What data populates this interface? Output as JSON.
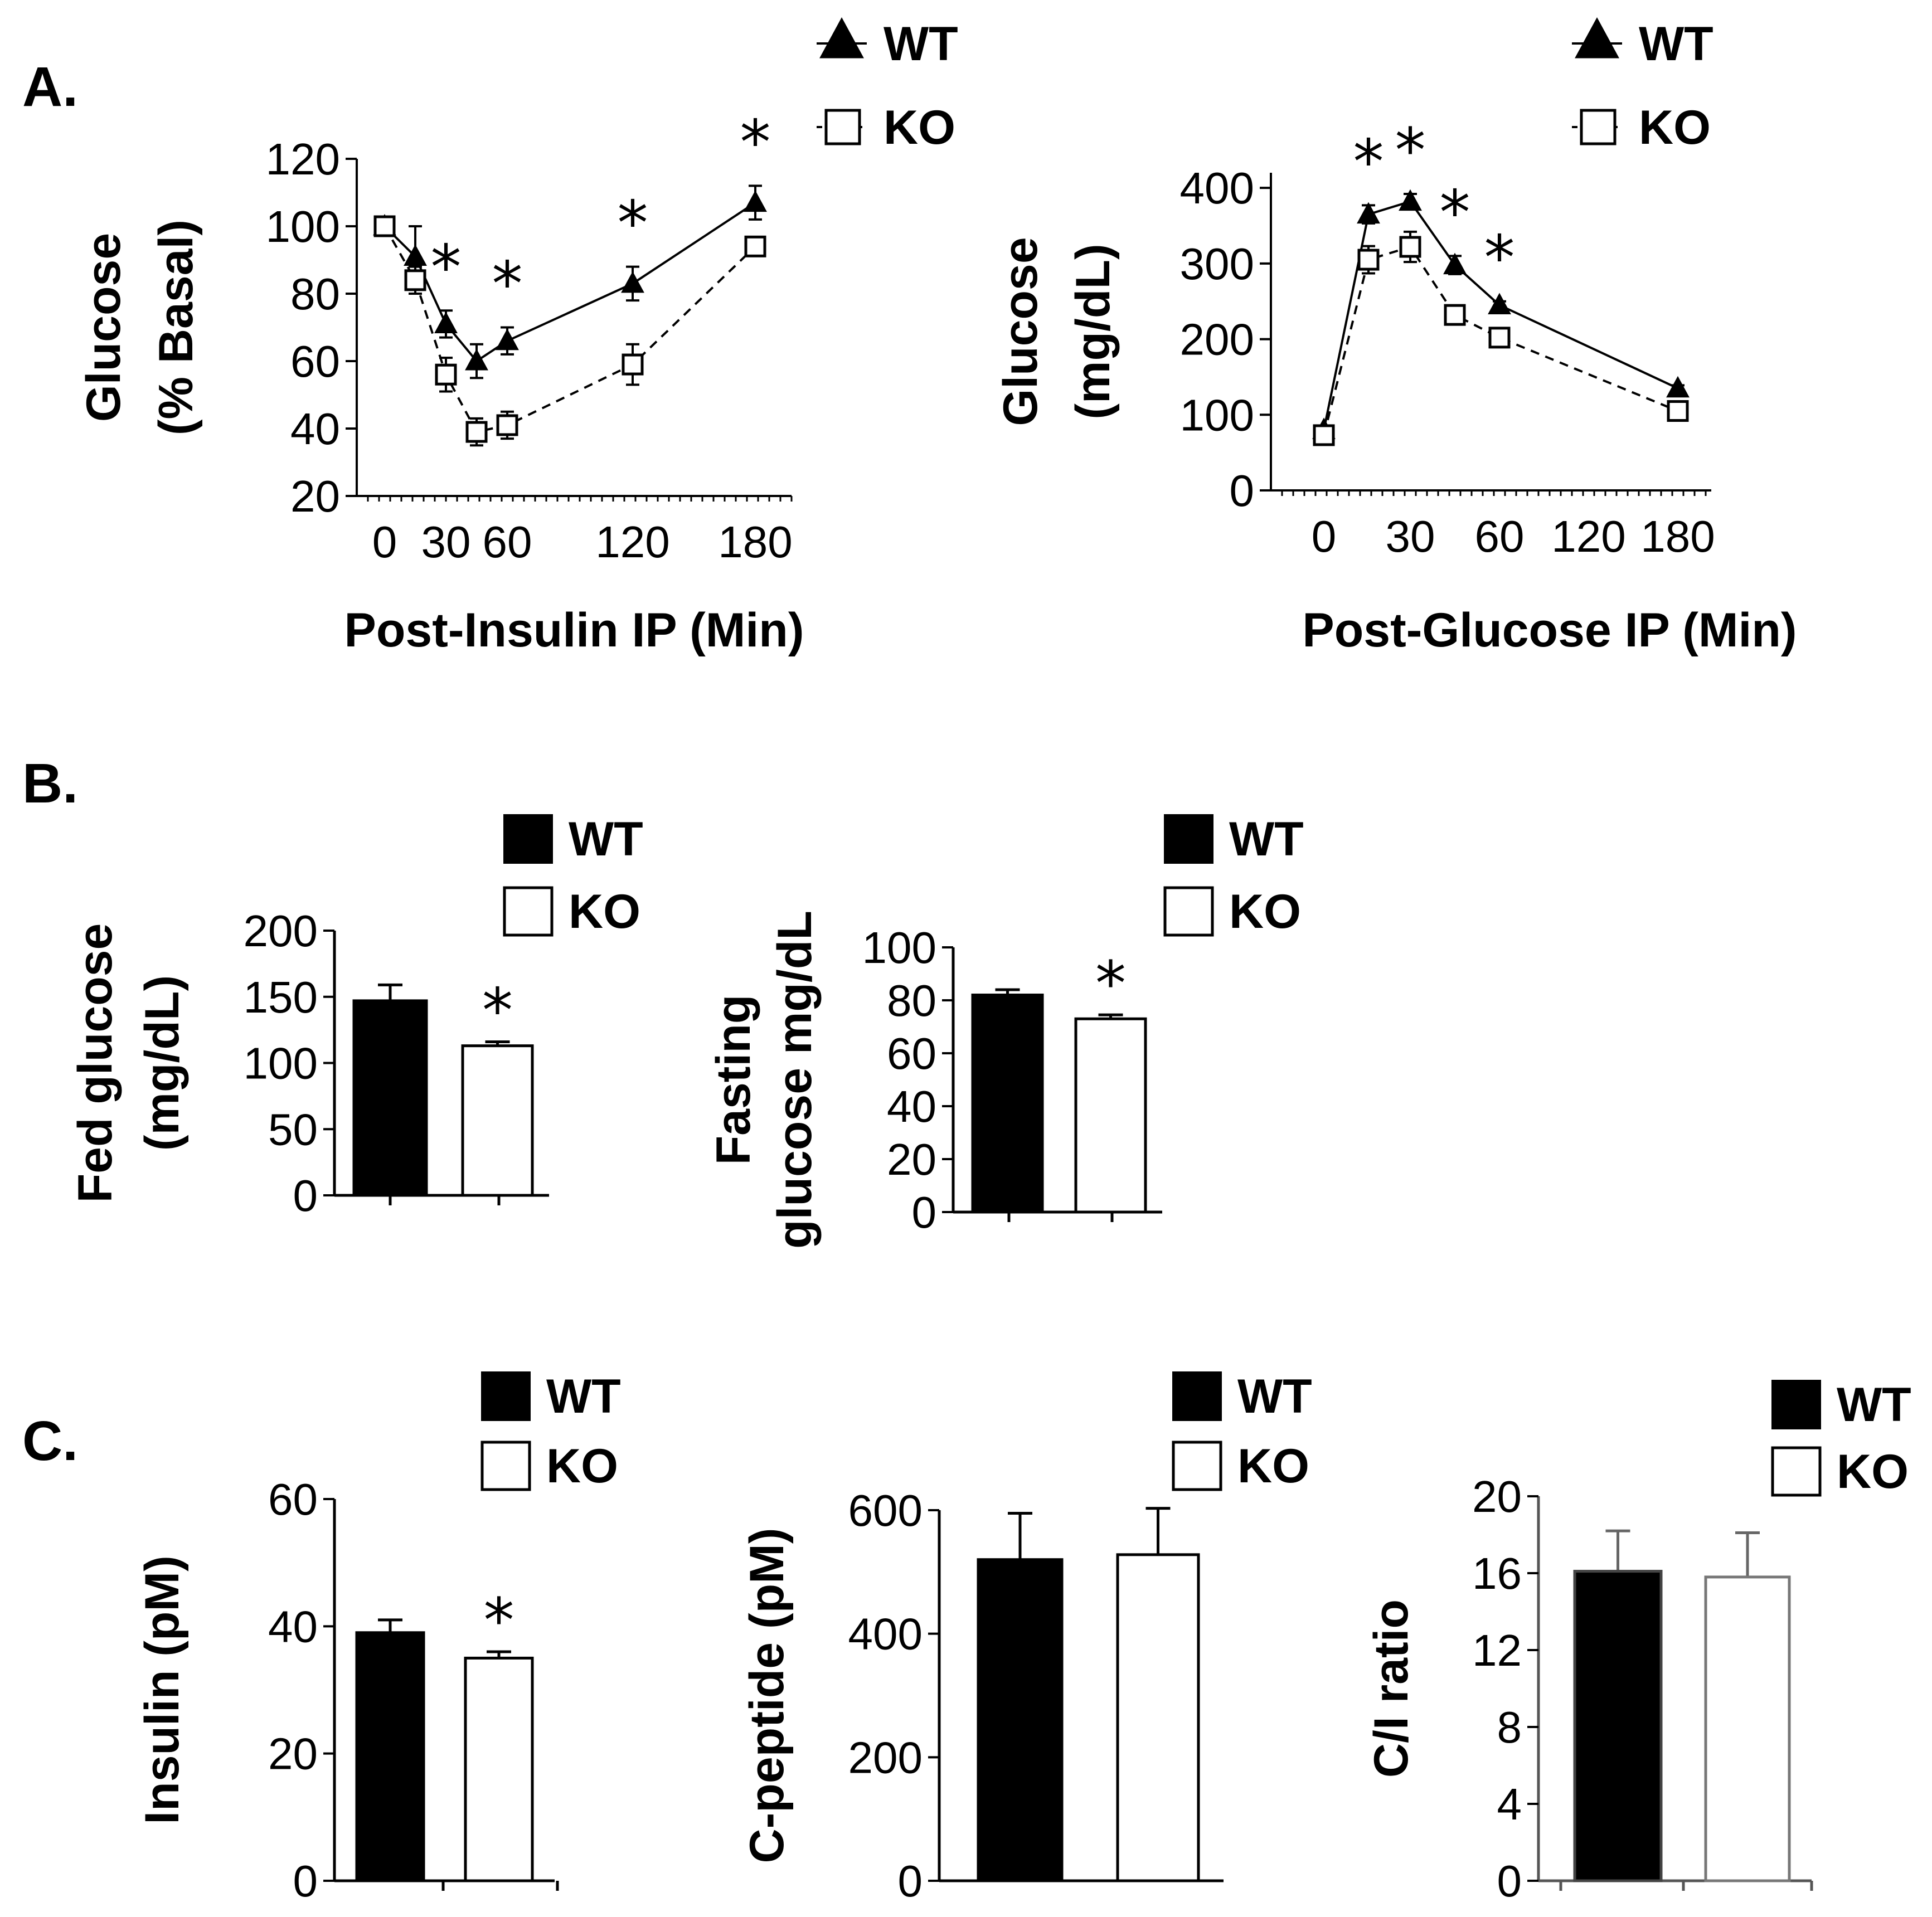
{
  "panel_labels": {
    "a": "A.",
    "b": "B.",
    "c": "C."
  },
  "chart_data": [
    {
      "id": "itt",
      "type": "line",
      "x": [
        0,
        15,
        30,
        45,
        60,
        120,
        180
      ],
      "xticks": [
        "0",
        "30",
        "60",
        "120",
        "180"
      ],
      "xtick_values": [
        0,
        30,
        60,
        120,
        180
      ],
      "xlabel": "Post-Insulin IP (Min)",
      "ylabel_lines": [
        "Glucose",
        "(% Basal)"
      ],
      "ylim": [
        20,
        120
      ],
      "yticks": [
        "120",
        "100",
        "80",
        "60",
        "40",
        "20"
      ],
      "ytick_values": [
        120,
        100,
        80,
        60,
        40,
        20
      ],
      "series": [
        {
          "name": "WT",
          "marker": "triangle-filled",
          "line": "solid",
          "values": [
            100,
            91,
            71,
            60,
            66,
            83,
            107
          ],
          "errors": [
            1,
            9,
            4,
            5,
            4,
            5,
            5
          ]
        },
        {
          "name": "KO",
          "marker": "square-open",
          "line": "dashed",
          "values": [
            100,
            84,
            56,
            39,
            41,
            59,
            94
          ],
          "errors": [
            1,
            4,
            5,
            4,
            4,
            6,
            2
          ]
        }
      ],
      "significance_at": [
        30,
        60,
        120,
        180
      ],
      "significance_marker": "*",
      "legend": [
        "WT",
        "KO"
      ]
    },
    {
      "id": "gtt",
      "type": "line",
      "x": [
        0,
        15,
        30,
        45,
        60,
        180
      ],
      "xticks": [
        "0",
        "30",
        "60",
        "120",
        "180"
      ],
      "xlabel": "Post-Glucose IP (Min)",
      "ylabel_lines": [
        "Glucose",
        "(mg/dL)"
      ],
      "ylim": [
        0,
        420
      ],
      "yticks": [
        "400",
        "300",
        "200",
        "100",
        "0"
      ],
      "ytick_values": [
        400,
        300,
        200,
        100,
        0
      ],
      "series": [
        {
          "name": "WT",
          "marker": "triangle-filled",
          "line": "solid",
          "values": [
            80,
            365,
            382,
            298,
            245,
            135
          ],
          "errors": [
            4,
            12,
            10,
            12,
            5,
            4
          ]
        },
        {
          "name": "KO",
          "marker": "square-open",
          "line": "dashed",
          "values": [
            73,
            305,
            322,
            232,
            202,
            105
          ],
          "errors": [
            4,
            18,
            20,
            8,
            5,
            4
          ]
        }
      ],
      "significance_at": [
        15,
        30,
        45,
        60
      ],
      "significance_marker": "*",
      "legend": [
        "WT",
        "KO"
      ]
    },
    {
      "id": "fed",
      "type": "bar",
      "categories": [
        "WT",
        "KO"
      ],
      "values": [
        147,
        113
      ],
      "errors": [
        12,
        3
      ],
      "ylabel_lines": [
        "Fed glucose",
        "(mg/dL)"
      ],
      "ylim": [
        0,
        200
      ],
      "yticks": [
        "200",
        "150",
        "100",
        "50",
        "0"
      ],
      "ytick_values": [
        200,
        150,
        100,
        50,
        0
      ],
      "significance": [
        false,
        true
      ],
      "significance_marker": "*",
      "legend": [
        "WT",
        "KO"
      ]
    },
    {
      "id": "fasting",
      "type": "bar",
      "categories": [
        "WT",
        "KO"
      ],
      "values": [
        82,
        73
      ],
      "errors": [
        2,
        1.5
      ],
      "ylabel_lines": [
        "Fasting",
        "glucose mg/dL"
      ],
      "ylim": [
        0,
        100
      ],
      "yticks": [
        "100",
        "80",
        "60",
        "40",
        "20",
        "0"
      ],
      "ytick_values": [
        100,
        80,
        60,
        40,
        20,
        0
      ],
      "significance": [
        false,
        true
      ],
      "significance_marker": "*",
      "legend": [
        "WT",
        "KO"
      ]
    },
    {
      "id": "insulin",
      "type": "bar",
      "categories": [
        "WT",
        "KO"
      ],
      "values": [
        39,
        35
      ],
      "errors": [
        2,
        1
      ],
      "ylabel_lines": [
        "Insulin (pM)"
      ],
      "ylim": [
        0,
        60
      ],
      "yticks": [
        "60",
        "40",
        "20",
        "0"
      ],
      "ytick_values": [
        60,
        40,
        20,
        0
      ],
      "significance": [
        false,
        true
      ],
      "significance_marker": "*",
      "legend": [
        "WT",
        "KO"
      ]
    },
    {
      "id": "cpeptide",
      "type": "bar",
      "categories": [
        "WT",
        "KO"
      ],
      "values": [
        520,
        528
      ],
      "errors": [
        75,
        75
      ],
      "ylabel_lines": [
        "C-peptide (pM)"
      ],
      "ylim": [
        0,
        600
      ],
      "yticks": [
        "600",
        "400",
        "200",
        "0"
      ],
      "ytick_values": [
        600,
        400,
        200,
        0
      ],
      "significance": [
        false,
        false
      ],
      "legend": [
        "WT",
        "KO"
      ]
    },
    {
      "id": "ciratio",
      "type": "bar",
      "categories": [
        "WT",
        "KO"
      ],
      "values": [
        16.1,
        15.8
      ],
      "errors": [
        2.1,
        2.3
      ],
      "ylabel_lines": [
        "C/I ratio"
      ],
      "ylim": [
        0,
        20
      ],
      "yticks": [
        "20",
        "16",
        "12",
        "8",
        "4",
        "0"
      ],
      "ytick_values": [
        20,
        16,
        12,
        8,
        4,
        0
      ],
      "significance": [
        false,
        false
      ],
      "legend": [
        "WT",
        "KO"
      ]
    }
  ]
}
